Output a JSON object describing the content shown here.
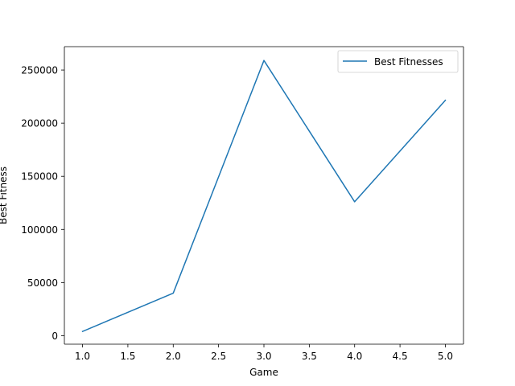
{
  "chart_data": {
    "type": "line",
    "title": "",
    "xlabel": "Game",
    "ylabel": "Best Fitness",
    "x": [
      1,
      2,
      3,
      4,
      5
    ],
    "series": [
      {
        "name": "Best Fitnesses",
        "values": [
          4000,
          40000,
          259000,
          126000,
          221500
        ],
        "color": "#1f77b4"
      }
    ],
    "xlim": [
      0.8,
      5.2
    ],
    "ylim": [
      -8000,
      272000
    ],
    "xticks": [
      1.0,
      1.5,
      2.0,
      2.5,
      3.0,
      3.5,
      4.0,
      4.5,
      5.0
    ],
    "xtick_labels": [
      "1.0",
      "1.5",
      "2.0",
      "2.5",
      "3.0",
      "3.5",
      "4.0",
      "4.5",
      "5.0"
    ],
    "yticks": [
      0,
      50000,
      100000,
      150000,
      200000,
      250000
    ],
    "ytick_labels": [
      "0",
      "50000",
      "100000",
      "150000",
      "200000",
      "250000"
    ],
    "grid": false,
    "legend_position": "top-right"
  }
}
